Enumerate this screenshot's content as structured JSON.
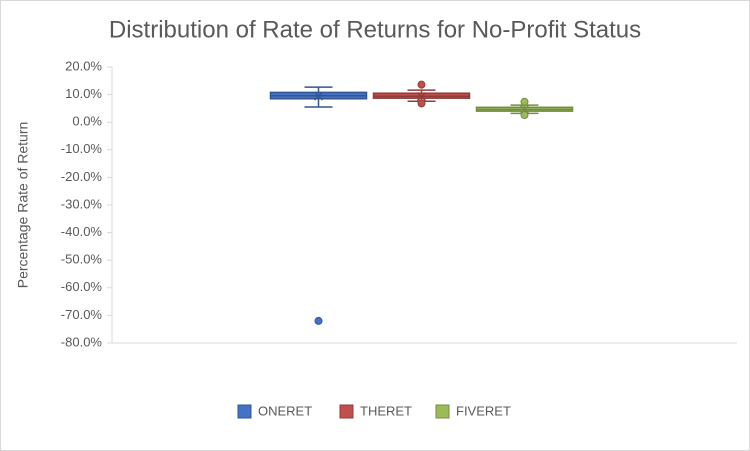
{
  "chart_data": {
    "type": "box",
    "title": "Distribution of Rate of Returns for No-Profit Status",
    "y_label": "Percentage Rate of Return",
    "ylim": [
      -80,
      20
    ],
    "yticks": [
      {
        "value": 20,
        "label": "20.0%"
      },
      {
        "value": 10,
        "label": "10.0%"
      },
      {
        "value": 0,
        "label": "0.0%"
      },
      {
        "value": -10,
        "label": "-10.0%"
      },
      {
        "value": -20,
        "label": "-20.0%"
      },
      {
        "value": -30,
        "label": "-30.0%"
      },
      {
        "value": -40,
        "label": "-40.0%"
      },
      {
        "value": -50,
        "label": "-50.0%"
      },
      {
        "value": -60,
        "label": "-60.0%"
      },
      {
        "value": -70,
        "label": "-70.0%"
      },
      {
        "value": -80,
        "label": "-80.0%"
      }
    ],
    "legend": "bottom",
    "series": [
      {
        "name": "ONERET",
        "color": "#4472c4",
        "min": 5.5,
        "q1": 8.5,
        "median": 9.6,
        "q3": 10.8,
        "max": 12.7,
        "mean": 9.5,
        "outliers": [
          -72
        ]
      },
      {
        "name": "THERET",
        "color": "#c0504d",
        "min": 7.6,
        "q1": 8.7,
        "median": 9.4,
        "q3": 10.5,
        "max": 11.6,
        "mean": 9.3,
        "outliers": [
          13.6,
          6.8
        ]
      },
      {
        "name": "FIVERET",
        "color": "#9bbb59",
        "min": 3.2,
        "q1": 4.0,
        "median": 4.6,
        "q3": 5.4,
        "max": 6.2,
        "mean": 4.7,
        "outliers": [
          7.4,
          2.6
        ]
      }
    ]
  }
}
